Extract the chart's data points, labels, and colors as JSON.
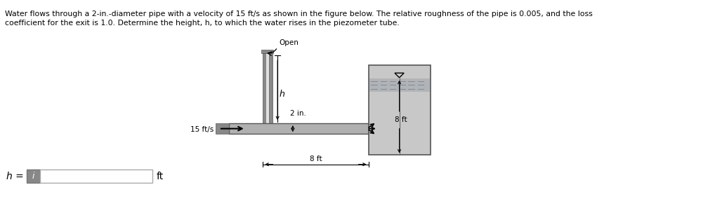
{
  "title_line1": "Water flows through a 2-in.-diameter pipe with a velocity of 15 ft/s as shown in the figure below. The relative roughness of the pipe is 0.005, and the loss",
  "title_line2": "coefficient for the exit is 1.0. Determine the height, h, to which the water rises in the piezometer tube.",
  "label_open": "Open",
  "label_h": "h",
  "label_2in": "2 in.",
  "label_8ft_tank": "8 ft",
  "label_8ft_dim": "8 ft",
  "label_15fts": "15 ft/s",
  "answer_prefix": "h =",
  "answer_suffix": "ft",
  "bg_color": "#ffffff",
  "pipe_fill": "#b0b0b0",
  "pipe_dark": "#888888",
  "tank_fill": "#c8c8c8",
  "tank_wall": "#909090",
  "water_fill": "#b8b8b8",
  "piezo_fill": "#c0c0c0",
  "piezo_dark": "#888888"
}
